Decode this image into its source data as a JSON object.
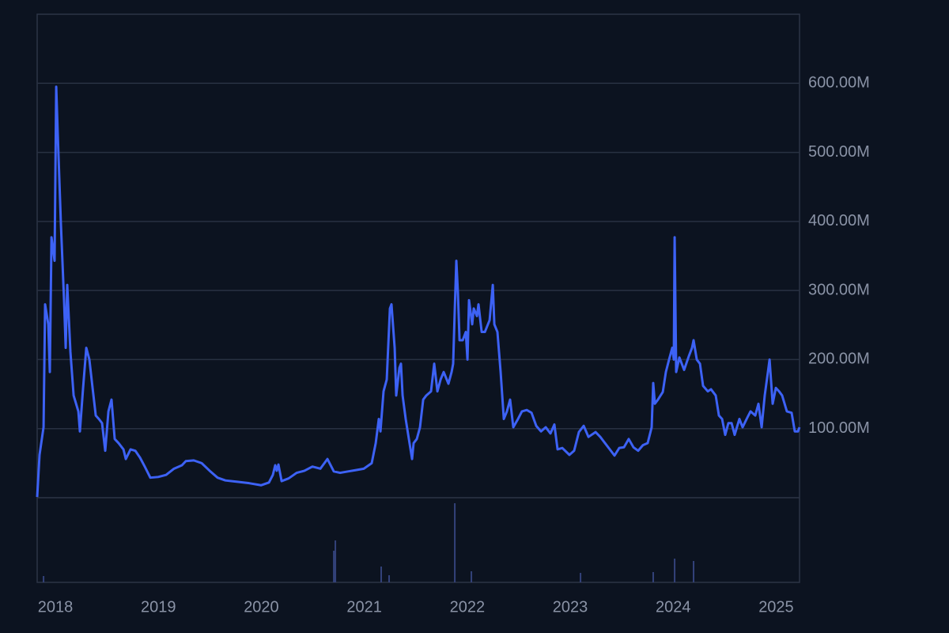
{
  "chart_data": {
    "type": "line",
    "color": "#3d62f5",
    "x": [
      2017.823,
      2017.846,
      2017.885,
      2017.9,
      2017.931,
      2017.946,
      2017.962,
      2017.992,
      2018.008,
      2018.023,
      2018.054,
      2018.084,
      2018.1,
      2018.115,
      2018.146,
      2018.177,
      2018.223,
      2018.238,
      2018.269,
      2018.3,
      2018.33,
      2018.361,
      2018.392,
      2018.422,
      2018.453,
      2018.484,
      2018.515,
      2018.545,
      2018.576,
      2018.614,
      2018.661,
      2018.684,
      2018.73,
      2018.776,
      2018.822,
      2018.868,
      2018.922,
      2018.998,
      2019.075,
      2019.152,
      2019.229,
      2019.267,
      2019.344,
      2019.421,
      2019.498,
      2019.575,
      2019.651,
      2019.767,
      2019.882,
      2019.997,
      2020.074,
      2020.112,
      2020.135,
      2020.15,
      2020.166,
      2020.197,
      2020.266,
      2020.343,
      2020.419,
      2020.496,
      2020.573,
      2020.642,
      2020.704,
      2020.765,
      2020.842,
      2020.919,
      2020.995,
      2021.072,
      2021.111,
      2021.141,
      2021.157,
      2021.187,
      2021.218,
      2021.249,
      2021.264,
      2021.295,
      2021.31,
      2021.341,
      2021.356,
      2021.372,
      2021.402,
      2021.433,
      2021.464,
      2021.479,
      2021.51,
      2021.541,
      2021.572,
      2021.602,
      2021.648,
      2021.679,
      2021.71,
      2021.741,
      2021.771,
      2021.817,
      2021.848,
      2021.863,
      2021.879,
      2021.894,
      2021.909,
      2021.925,
      2021.956,
      2021.986,
      2022.002,
      2022.017,
      2022.048,
      2022.063,
      2022.094,
      2022.109,
      2022.14,
      2022.171,
      2022.217,
      2022.248,
      2022.263,
      2022.293,
      2022.324,
      2022.355,
      2022.385,
      2022.416,
      2022.447,
      2022.493,
      2022.531,
      2022.578,
      2022.624,
      2022.67,
      2022.716,
      2022.762,
      2022.808,
      2022.846,
      2022.877,
      2022.923,
      2022.992,
      2023.038,
      2023.084,
      2023.131,
      2023.177,
      2023.246,
      2023.292,
      2023.338,
      2023.384,
      2023.43,
      2023.476,
      2023.522,
      2023.568,
      2023.614,
      2023.66,
      2023.706,
      2023.752,
      2023.791,
      2023.806,
      2023.822,
      2023.852,
      2023.899,
      2023.929,
      2023.96,
      2023.991,
      2024.006,
      2024.014,
      2024.029,
      2024.06,
      2024.106,
      2024.152,
      2024.183,
      2024.198,
      2024.229,
      2024.26,
      2024.29,
      2024.336,
      2024.367,
      2024.413,
      2024.444,
      2024.475,
      2024.505,
      2024.536,
      2024.567,
      2024.597,
      2024.643,
      2024.674,
      2024.72,
      2024.751,
      2024.797,
      2024.828,
      2024.859,
      2024.889,
      2024.92,
      2024.936,
      2024.966,
      2024.997,
      2025.028,
      2025.058,
      2025.104,
      2025.15,
      2025.181,
      2025.212,
      2025.227
    ],
    "values": [
      1000000.0,
      62000000.0,
      102000000.0,
      280000000.0,
      251000000.0,
      182000000.0,
      377000000.0,
      343000000.0,
      595000000.0,
      526000000.0,
      394000000.0,
      286000000.0,
      217000000.0,
      308000000.0,
      211000000.0,
      148000000.0,
      125000000.0,
      96000000.0,
      159000000.0,
      217000000.0,
      200000000.0,
      159000000.0,
      119000000.0,
      114000000.0,
      108000000.0,
      68000000.0,
      125000000.0,
      142000000.0,
      85000000.0,
      79000000.0,
      70000000.0,
      56000000.0,
      70000000.0,
      68000000.0,
      58000000.0,
      45000000.0,
      29000000.0,
      30000000.0,
      33000000.0,
      42000000.0,
      47000000.0,
      53000000.0,
      54000000.0,
      50000000.0,
      39000000.0,
      29000000.0,
      25000000.0,
      23000000.0,
      21000000.0,
      18000000.0,
      22000000.0,
      33000000.0,
      47000000.0,
      39000000.0,
      48000000.0,
      24000000.0,
      28000000.0,
      36000000.0,
      39000000.0,
      45000000.0,
      42000000.0,
      56000000.0,
      38000000.0,
      36000000.0,
      38000000.0,
      40000000.0,
      42000000.0,
      50000000.0,
      79000000.0,
      114000000.0,
      96000000.0,
      154000000.0,
      171000000.0,
      274000000.0,
      280000000.0,
      217000000.0,
      148000000.0,
      188000000.0,
      194000000.0,
      148000000.0,
      114000000.0,
      85000000.0,
      56000000.0,
      79000000.0,
      85000000.0,
      102000000.0,
      142000000.0,
      148000000.0,
      154000000.0,
      194000000.0,
      154000000.0,
      171000000.0,
      182000000.0,
      165000000.0,
      182000000.0,
      194000000.0,
      274000000.0,
      343000000.0,
      297000000.0,
      228000000.0,
      228000000.0,
      240000000.0,
      200000000.0,
      286000000.0,
      251000000.0,
      274000000.0,
      263000000.0,
      280000000.0,
      240000000.0,
      240000000.0,
      257000000.0,
      308000000.0,
      251000000.0,
      240000000.0,
      182000000.0,
      114000000.0,
      125000000.0,
      142000000.0,
      102000000.0,
      114000000.0,
      125000000.0,
      127000000.0,
      123000000.0,
      104000000.0,
      96000000.0,
      102000000.0,
      93000000.0,
      106000000.0,
      70000000.0,
      72000000.0,
      62000000.0,
      68000000.0,
      95000000.0,
      104000000.0,
      88000000.0,
      95000000.0,
      88000000.0,
      79000000.0,
      70000000.0,
      61000000.0,
      72000000.0,
      73000000.0,
      85000000.0,
      73000000.0,
      68000000.0,
      76000000.0,
      79000000.0,
      102000000.0,
      166000000.0,
      136000000.0,
      142000000.0,
      153000000.0,
      182000000.0,
      200000000.0,
      217000000.0,
      200000000.0,
      377000000.0,
      182000000.0,
      203000000.0,
      185000000.0,
      205000000.0,
      217000000.0,
      228000000.0,
      200000000.0,
      194000000.0,
      162000000.0,
      154000000.0,
      157000000.0,
      148000000.0,
      119000000.0,
      114000000.0,
      91000000.0,
      108000000.0,
      108000000.0,
      91000000.0,
      114000000.0,
      102000000.0,
      116000000.0,
      125000000.0,
      119000000.0,
      136000000.0,
      102000000.0,
      148000000.0,
      182000000.0,
      200000000.0,
      136000000.0,
      159000000.0,
      154000000.0,
      148000000.0,
      125000000.0,
      123000000.0,
      96000000.0,
      96000000.0,
      102000000.0
    ],
    "xlim": [
      2017.823,
      2025.227
    ],
    "xticks": [
      2018,
      2019,
      2020,
      2021,
      2022,
      2023,
      2024,
      2025
    ],
    "ylim": [
      0,
      700000000.0
    ],
    "yticks": [
      {
        "value": 100000000.0,
        "label": "100.00M"
      },
      {
        "value": 200000000.0,
        "label": "200.00M"
      },
      {
        "value": 300000000.0,
        "label": "300.00M"
      },
      {
        "value": 400000000.0,
        "label": "400.00M"
      },
      {
        "value": 500000000.0,
        "label": "500.00M"
      },
      {
        "value": 600000000.0,
        "label": "600.00M"
      }
    ],
    "grid": true,
    "volume": {
      "type": "bar",
      "color": "#33427a",
      "x": [
        2017.885,
        2020.704,
        2020.719,
        2021.164,
        2021.241,
        2021.879,
        2022.04,
        2023.1,
        2023.806,
        2024.014,
        2024.198
      ],
      "values": [
        8,
        40,
        53,
        20,
        9,
        100,
        14,
        12,
        13,
        30,
        27
      ],
      "ylim": [
        0,
        100
      ]
    }
  }
}
